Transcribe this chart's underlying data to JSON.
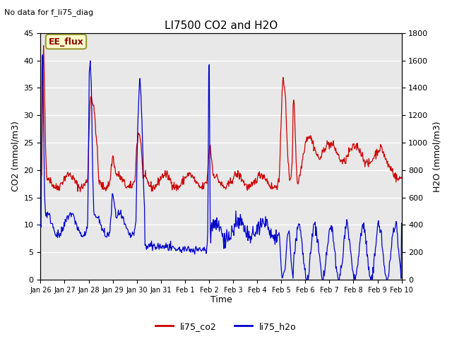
{
  "title": "LI7500 CO2 and H2O",
  "top_left_text": "No data for f_li75_diag",
  "xlabel": "Time",
  "ylabel_left": "CO2 (mmol/m3)",
  "ylabel_right": "H2O (mmol/m3)",
  "legend_label1": "li75_co2",
  "legend_label2": "li75_h2o",
  "box_label": "EE_flux",
  "xlim": [
    0,
    360
  ],
  "ylim_left": [
    0,
    45
  ],
  "ylim_right": [
    0,
    1800
  ],
  "xtick_labels": [
    "Jan 26",
    "Jan 27",
    "Jan 28",
    "Jan 29",
    "Jan 30",
    "Jan 31",
    "Feb 1",
    "Feb 2",
    "Feb 3",
    "Feb 4",
    "Feb 5",
    "Feb 6",
    "Feb 7",
    "Feb 8",
    "Feb 9",
    "Feb 10"
  ],
  "xtick_positions": [
    0,
    24,
    48,
    72,
    96,
    120,
    144,
    168,
    192,
    216,
    240,
    264,
    288,
    312,
    336,
    360
  ],
  "co2_color": "#cc0000",
  "h2o_color": "#0000cc",
  "fig_bg_color": "#ffffff",
  "plot_bg_color": "#e8e8e8",
  "grid_color": "#ffffff",
  "box_fill": "#ffffcc",
  "box_edge": "#999933"
}
